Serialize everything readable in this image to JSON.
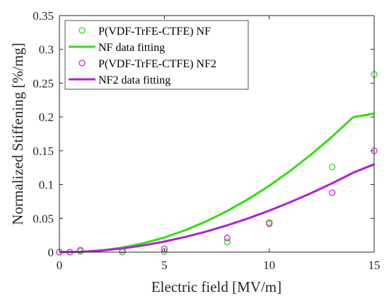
{
  "chart_data": {
    "type": "scatter",
    "xlabel": "Electric field [MV/m]",
    "ylabel": "Normalized Stiffening [%/mg]",
    "xlim": [
      0,
      15
    ],
    "ylim": [
      0,
      0.35
    ],
    "x_ticks": [
      "0",
      "5",
      "10",
      "15"
    ],
    "y_ticks": [
      "0",
      "0.05",
      "0.1",
      "0.15",
      "0.2",
      "0.25",
      "0.3",
      "0.35"
    ],
    "grid": false,
    "legend_position": "top-left",
    "series": [
      {
        "name": "P(VDF-TrFE-CTFE) NF",
        "kind": "scatter",
        "marker": "circle-open",
        "color": "#22dd22",
        "x": [
          0,
          0.5,
          1,
          3,
          5,
          8,
          10,
          13,
          15
        ],
        "y": [
          0,
          0,
          0.001,
          0.0,
          0.001,
          0.015,
          0.044,
          0.126,
          0.263
        ]
      },
      {
        "name": "NF data fitting",
        "kind": "line",
        "color": "#33dd11",
        "x": [
          0,
          1,
          2,
          3,
          4,
          5,
          6,
          7,
          8,
          9,
          10,
          11,
          12,
          13,
          14,
          15
        ],
        "y": [
          0,
          0.0004,
          0.0025,
          0.0067,
          0.0131,
          0.0217,
          0.0325,
          0.0456,
          0.0609,
          0.0785,
          0.0981,
          0.1203,
          0.1445,
          0.171,
          0.1997,
          0.205
        ]
      },
      {
        "name": "P(VDF-TrFE-CTFE) NF2",
        "kind": "scatter",
        "marker": "circle-open",
        "color": "#dd22dd",
        "x": [
          0,
          0.5,
          1,
          3,
          5,
          8,
          10,
          13,
          15
        ],
        "y": [
          0,
          0,
          0.003,
          0.003,
          0.005,
          0.021,
          0.042,
          0.088,
          0.15
        ]
      },
      {
        "name": "NF2 data fitting",
        "kind": "line",
        "color": "#b01fd6",
        "x": [
          0,
          1,
          2,
          3,
          4,
          5,
          6,
          7,
          8,
          9,
          10,
          11,
          12,
          13,
          14,
          15
        ],
        "y": [
          0,
          0.0005,
          0.0023,
          0.0055,
          0.0099,
          0.0156,
          0.0225,
          0.0305,
          0.0397,
          0.05,
          0.0614,
          0.0739,
          0.0874,
          0.1019,
          0.1175,
          0.13
        ]
      }
    ]
  }
}
